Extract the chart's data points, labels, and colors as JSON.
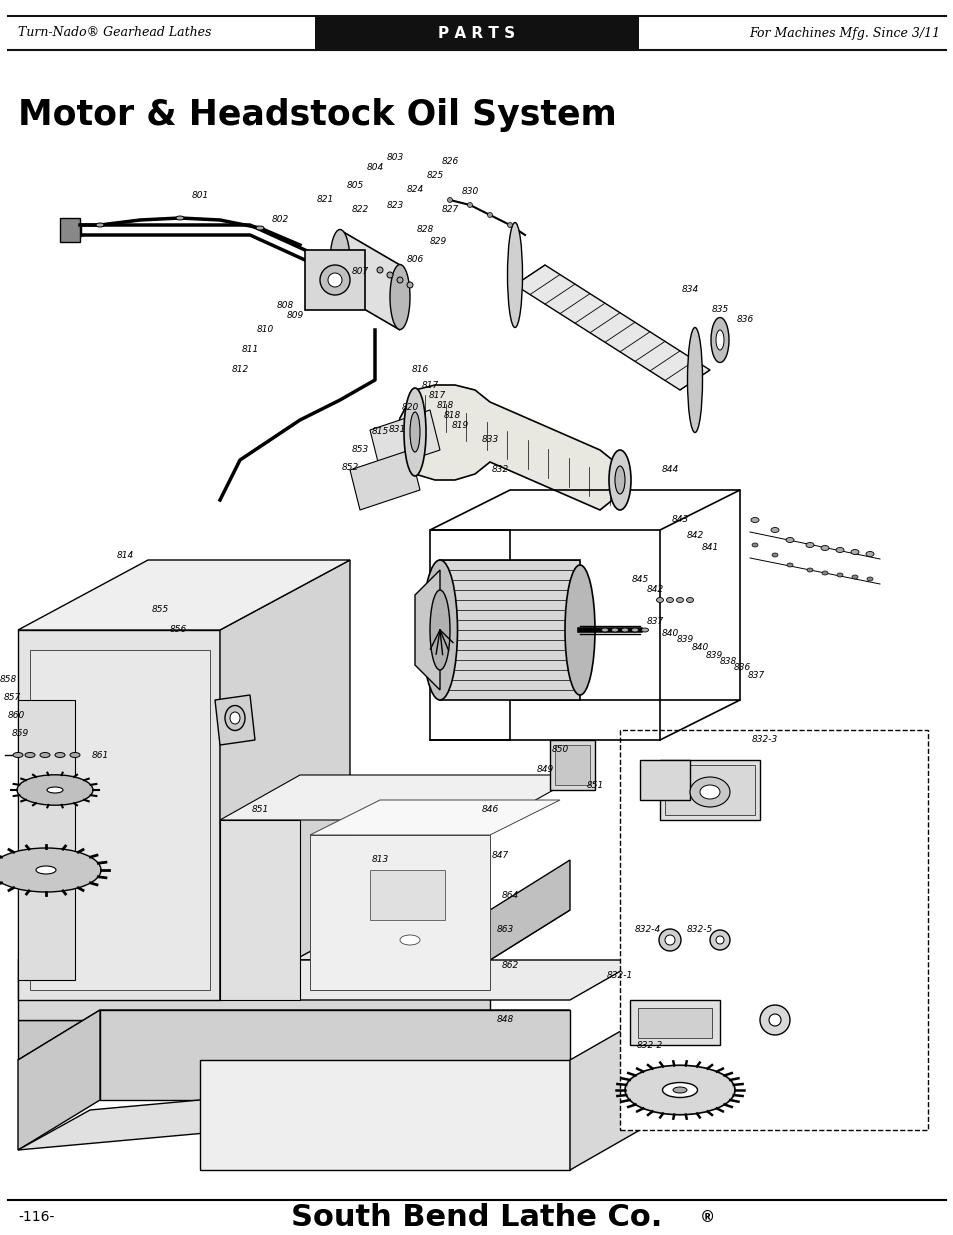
{
  "header_left": "Turn-Nado® Gearhead Lathes",
  "header_center": "P A R T S",
  "header_right": "For Machines Mfg. Since 3/11",
  "page_title": "Motor & Headstock Oil System",
  "footer_left": "-116-",
  "footer_center": "South Bend Lathe Co.",
  "footer_reg": "®",
  "bg_color": "#ffffff",
  "header_bg": "#1a1a1a",
  "header_text_color": "#ffffff",
  "header_side_color": "#111111",
  "title_color": "#000000",
  "footer_color": "#000000",
  "fig_width": 9.54,
  "fig_height": 12.35,
  "dpi": 100
}
